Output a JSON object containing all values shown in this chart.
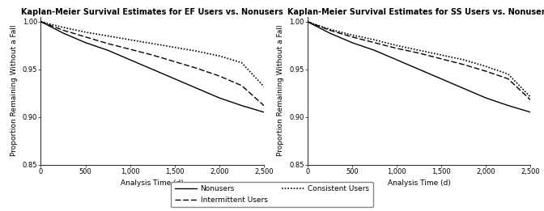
{
  "title_ef": "Kaplan-Meier Survival Estimates for EF Users vs. Nonusers",
  "title_ss": "Kaplan-Meier Survival Estimates for SS Users vs. Nonusers",
  "xlabel": "Analysis Time (d)",
  "ylabel": "Proportion Remaining Without a Fall",
  "xlim": [
    0,
    2500
  ],
  "ylim": [
    0.85,
    1.005
  ],
  "yticks": [
    0.85,
    0.9,
    0.95,
    1.0
  ],
  "xticks": [
    0,
    500,
    1000,
    1500,
    2000,
    2500
  ],
  "xtick_labels": [
    "0",
    "500",
    "1,000",
    "1,500",
    "2,000",
    "2,500"
  ],
  "ef_nonuser_x": [
    0,
    250,
    500,
    750,
    1000,
    1250,
    1500,
    1750,
    2000,
    2250,
    2500
  ],
  "ef_nonuser_y": [
    1.0,
    0.988,
    0.978,
    0.97,
    0.96,
    0.95,
    0.94,
    0.93,
    0.92,
    0.912,
    0.905
  ],
  "ef_consistent_x": [
    0,
    250,
    500,
    750,
    1000,
    1250,
    1500,
    1750,
    2000,
    2250,
    2500
  ],
  "ef_consistent_y": [
    1.0,
    0.994,
    0.989,
    0.985,
    0.981,
    0.977,
    0.973,
    0.969,
    0.964,
    0.957,
    0.932
  ],
  "ef_intermittent_x": [
    0,
    250,
    500,
    750,
    1000,
    1250,
    1500,
    1750,
    2000,
    2250,
    2500
  ],
  "ef_intermittent_y": [
    1.0,
    0.991,
    0.984,
    0.977,
    0.971,
    0.965,
    0.958,
    0.951,
    0.943,
    0.933,
    0.912
  ],
  "ss_nonuser_x": [
    0,
    250,
    500,
    750,
    1000,
    1250,
    1500,
    1750,
    2000,
    2250,
    2500
  ],
  "ss_nonuser_y": [
    1.0,
    0.988,
    0.978,
    0.97,
    0.96,
    0.95,
    0.94,
    0.93,
    0.92,
    0.912,
    0.905
  ],
  "ss_consistent_x": [
    0,
    250,
    500,
    750,
    1000,
    1250,
    1500,
    1750,
    2000,
    2250,
    2500
  ],
  "ss_consistent_y": [
    1.0,
    0.992,
    0.986,
    0.981,
    0.975,
    0.97,
    0.965,
    0.96,
    0.953,
    0.945,
    0.921
  ],
  "ss_intermittent_x": [
    0,
    250,
    500,
    750,
    1000,
    1250,
    1500,
    1750,
    2000,
    2250,
    2500
  ],
  "ss_intermittent_y": [
    1.0,
    0.991,
    0.984,
    0.978,
    0.972,
    0.967,
    0.961,
    0.955,
    0.948,
    0.94,
    0.918
  ],
  "color": "#000000",
  "lw": 1.0,
  "title_fontsize": 7.0,
  "label_fontsize": 6.5,
  "tick_fontsize": 6.0,
  "legend_fontsize": 6.5
}
